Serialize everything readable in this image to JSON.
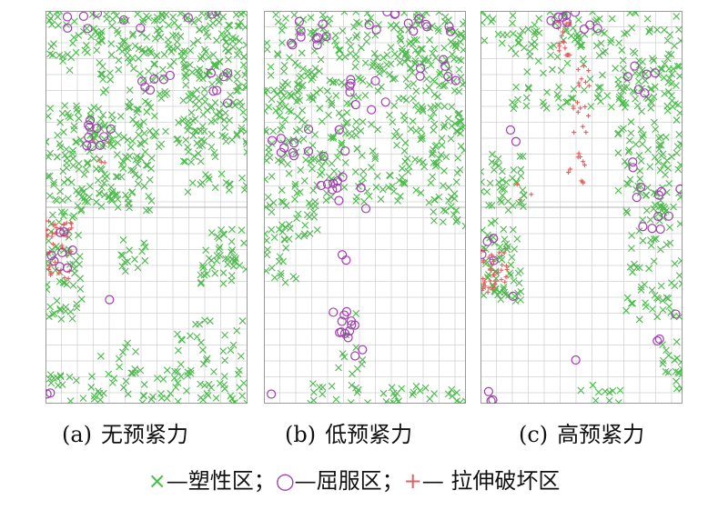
{
  "panels": [
    {
      "id": "a",
      "tag": "(a)",
      "label": "无预紧力"
    },
    {
      "id": "b",
      "tag": "(b)",
      "label": "低预紧力"
    },
    {
      "id": "c",
      "tag": "(c)",
      "label": "高预紧力"
    }
  ],
  "legend": {
    "plastic_symbol": "×",
    "plastic_label": "—塑性区；",
    "yield_symbol": "○",
    "yield_label": "—屈服区；",
    "tensile_symbol": "+",
    "tensile_label": "— 拉伸破坏区"
  },
  "colors": {
    "plastic": "#4cba4c",
    "yield": "#a040b0",
    "tensile": "#e06060",
    "grid": "#d0d0d0",
    "border": "#9a9a9a"
  }
}
